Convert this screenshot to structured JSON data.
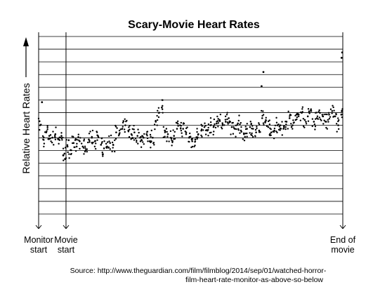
{
  "chart_data": {
    "type": "scatter",
    "title": "Scary-Movie Heart Rates",
    "ylabel": "Relative Heart Rates",
    "xlabel": "",
    "x_range": [
      0,
      100
    ],
    "y_range": [
      0,
      100
    ],
    "axis_labels": {
      "x": [
        {
          "x": 0,
          "line1": "Monitor",
          "line2": "start"
        },
        {
          "x": 9,
          "line1": "Movie",
          "line2": "start"
        },
        {
          "x": 100,
          "line1": "End of",
          "line2": "movie"
        }
      ]
    },
    "grid": {
      "horizontal": true,
      "count": 15
    },
    "notable_points": [
      {
        "x": 99.8,
        "y": 91
      },
      {
        "x": 99.6,
        "y": 88
      },
      {
        "x": 73.9,
        "y": 80
      },
      {
        "x": 73.3,
        "y": 72
      },
      {
        "x": 1.1,
        "y": 63
      },
      {
        "x": 8.1,
        "y": 33
      },
      {
        "x": 8.7,
        "y": 31
      }
    ],
    "series": [
      {
        "points": [
          [
            0.5,
            50
          ],
          [
            1.5,
            42
          ],
          [
            2.5,
            46
          ],
          [
            3.5,
            44
          ],
          [
            4.5,
            43
          ],
          [
            5.5,
            45
          ],
          [
            6.5,
            42
          ],
          [
            7.5,
            44
          ],
          [
            8.5,
            34
          ],
          [
            9.5,
            38
          ],
          [
            10.5,
            36
          ],
          [
            11.5,
            40
          ],
          [
            12.5,
            38
          ],
          [
            13.5,
            41
          ],
          [
            14.5,
            38
          ],
          [
            15.5,
            36
          ],
          [
            16.5,
            42
          ],
          [
            17.5,
            43
          ],
          [
            18.5,
            41
          ],
          [
            19.5,
            44
          ],
          [
            20.5,
            39
          ],
          [
            21.5,
            37
          ],
          [
            22.5,
            38
          ],
          [
            23.5,
            40
          ],
          [
            24.5,
            39
          ],
          [
            25.5,
            46
          ],
          [
            26.5,
            45
          ],
          [
            27.5,
            48
          ],
          [
            28.5,
            50
          ],
          [
            29.5,
            47
          ],
          [
            30.5,
            45
          ],
          [
            31.5,
            46
          ],
          [
            32.5,
            44
          ],
          [
            33.5,
            41
          ],
          [
            34.5,
            43
          ],
          [
            35.5,
            45
          ],
          [
            36.5,
            41
          ],
          [
            37.5,
            43
          ],
          [
            38.5,
            52
          ],
          [
            39.5,
            57
          ],
          [
            40.5,
            60
          ],
          [
            41.5,
            47
          ],
          [
            42.5,
            45
          ],
          [
            43.5,
            43
          ],
          [
            44.5,
            44
          ],
          [
            45.5,
            48
          ],
          [
            46.5,
            50
          ],
          [
            47.5,
            48
          ],
          [
            48.5,
            46
          ],
          [
            49.5,
            43
          ],
          [
            50.5,
            41
          ],
          [
            51.5,
            42
          ],
          [
            52.5,
            45
          ],
          [
            53.5,
            47
          ],
          [
            54.5,
            49
          ],
          [
            55.5,
            47
          ],
          [
            56.5,
            50
          ],
          [
            57.5,
            49
          ],
          [
            58.5,
            51
          ],
          [
            59.5,
            53
          ],
          [
            60.5,
            50
          ],
          [
            61.5,
            52
          ],
          [
            62.5,
            54
          ],
          [
            63.5,
            49
          ],
          [
            64.5,
            48
          ],
          [
            65.5,
            51
          ],
          [
            66.5,
            47
          ],
          [
            67.5,
            45
          ],
          [
            68.5,
            48
          ],
          [
            69.5,
            49
          ],
          [
            70.5,
            48
          ],
          [
            71.5,
            46
          ],
          [
            72.5,
            47
          ],
          [
            73.5,
            54
          ],
          [
            74.5,
            52
          ],
          [
            75.5,
            49
          ],
          [
            76.5,
            46
          ],
          [
            77.5,
            47
          ],
          [
            78.5,
            50
          ],
          [
            79.5,
            50
          ],
          [
            80.5,
            48
          ],
          [
            81.5,
            52
          ],
          [
            82.5,
            54
          ],
          [
            83.5,
            50
          ],
          [
            84.5,
            53
          ],
          [
            85.5,
            56
          ],
          [
            86.5,
            57
          ],
          [
            87.5,
            53
          ],
          [
            88.5,
            55
          ],
          [
            89.5,
            58
          ],
          [
            90.5,
            52
          ],
          [
            91.5,
            54
          ],
          [
            92.5,
            57
          ],
          [
            93.5,
            55
          ],
          [
            94.5,
            52
          ],
          [
            95.5,
            56
          ],
          [
            96.5,
            58
          ],
          [
            97.5,
            55
          ],
          [
            98.5,
            50
          ],
          [
            99.5,
            56
          ]
        ]
      }
    ]
  },
  "source": {
    "line1": "Source: http://www.theguardian.com/film/filmblog/2014/sep/01/watched-horror-",
    "line2": "film-heart-rate-monitor-as-above-so-below"
  }
}
